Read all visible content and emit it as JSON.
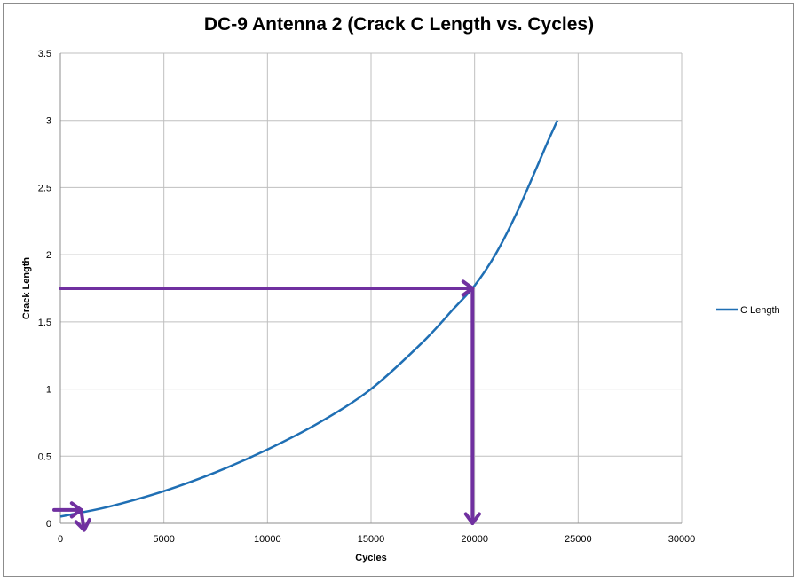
{
  "chart_data": {
    "type": "line",
    "title": "DC-9 Antenna 2  (Crack C Length vs. Cycles)",
    "xlabel": "Cycles",
    "ylabel": "Crack Length",
    "xlim": [
      0,
      30000
    ],
    "ylim": [
      0,
      3.5
    ],
    "x_ticks": [
      "0",
      "5000",
      "10000",
      "15000",
      "20000",
      "25000",
      "30000"
    ],
    "y_ticks": [
      "0",
      "0.5",
      "1",
      "1.5",
      "2",
      "2.5",
      "3",
      "3.5"
    ],
    "grid": true,
    "legend_position": "right",
    "series": [
      {
        "name": "C Length",
        "color": "#1f6fb4",
        "x": [
          0,
          1000,
          2500,
          5000,
          7500,
          10000,
          12500,
          15000,
          17500,
          19000,
          20000,
          21000,
          22000,
          23000,
          23500,
          24000
        ],
        "y": [
          0.05,
          0.08,
          0.13,
          0.24,
          0.38,
          0.55,
          0.75,
          1.0,
          1.35,
          1.6,
          1.77,
          2.0,
          2.3,
          2.65,
          2.83,
          3.0
        ]
      }
    ],
    "annotations": [
      {
        "kind": "arrow",
        "color": "#7030a0",
        "from": [
          0.1,
          1.75
        ],
        "to": [
          19900,
          1.75
        ],
        "direction": "right"
      },
      {
        "kind": "arrow",
        "color": "#7030a0",
        "from": [
          19900,
          1.75
        ],
        "to": [
          19900,
          0.0
        ],
        "direction": "down"
      },
      {
        "kind": "arrow",
        "color": "#7030a0",
        "from": [
          -300,
          0.1
        ],
        "to": [
          1000,
          0.1
        ],
        "direction": "right"
      },
      {
        "kind": "arrow",
        "color": "#7030a0",
        "from": [
          1000,
          0.1
        ],
        "to": [
          1150,
          -0.05
        ],
        "direction": "down"
      }
    ]
  }
}
